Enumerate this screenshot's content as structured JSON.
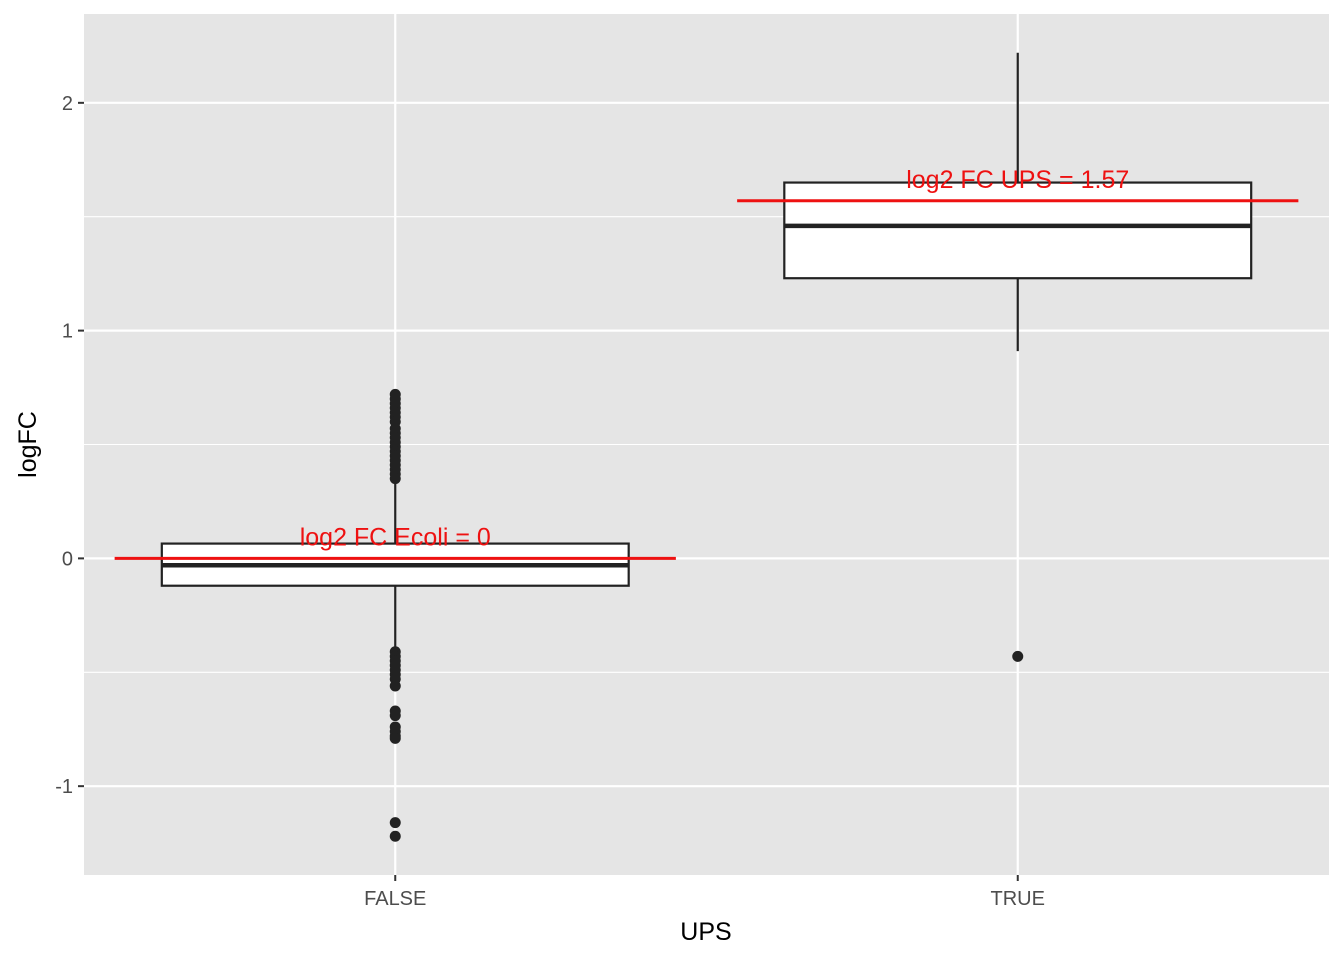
{
  "chart_data": {
    "type": "boxplot",
    "xlabel": "UPS",
    "ylabel": "logFC",
    "categories": [
      "FALSE",
      "TRUE"
    ],
    "ylim": [
      -1.39,
      2.39
    ],
    "y_ticks": [
      -1,
      0,
      1,
      2
    ],
    "y_tick_labels": [
      "-1",
      "0",
      "1",
      "2"
    ],
    "grid": true,
    "colors": {
      "panel_bg": "#e5e5e5",
      "grid": "#ffffff",
      "box_line": "#222222",
      "box_fill": "#ffffff",
      "reference": "#ee1111"
    },
    "boxes": [
      {
        "category": "FALSE",
        "lower_whisker": -0.4,
        "q1": -0.12,
        "median": -0.03,
        "q3": 0.065,
        "upper_whisker": 0.33,
        "outliers": [
          0.72,
          0.7,
          0.68,
          0.66,
          0.64,
          0.62,
          0.6,
          0.57,
          0.55,
          0.53,
          0.51,
          0.49,
          0.47,
          0.45,
          0.43,
          0.41,
          0.39,
          0.37,
          0.35,
          -0.41,
          -0.43,
          -0.45,
          -0.47,
          -0.49,
          -0.51,
          -0.53,
          -0.56,
          -0.67,
          -0.69,
          -0.74,
          -0.76,
          -0.78,
          -0.79,
          -1.16,
          -1.22
        ]
      },
      {
        "category": "TRUE",
        "lower_whisker": 0.91,
        "q1": 1.23,
        "median": 1.46,
        "q3": 1.65,
        "upper_whisker": 2.22,
        "outliers": [
          -0.43
        ]
      }
    ],
    "reference_lines": [
      {
        "category": "FALSE",
        "value": 0,
        "label": "log2 FC Ecoli = 0"
      },
      {
        "category": "TRUE",
        "value": 1.57,
        "label": "log2 FC UPS = 1.57"
      }
    ]
  }
}
